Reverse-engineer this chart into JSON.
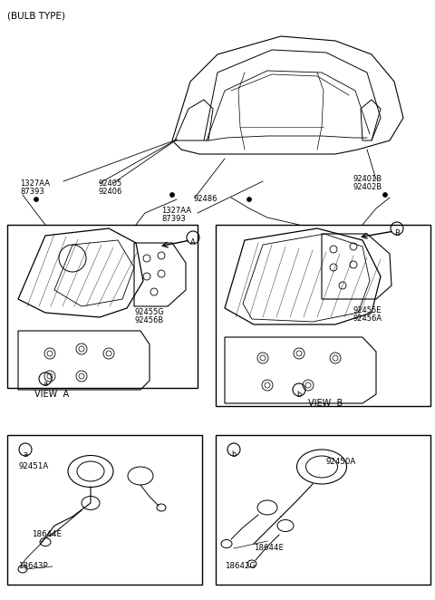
{
  "title": "(BULB TYPE)",
  "bg_color": "#ffffff",
  "line_color": "#000000",
  "parts": {
    "left_box_label": "A",
    "right_box_label": "B",
    "bottom_left_label": "a",
    "bottom_right_label": "b",
    "part_numbers": {
      "top_left_1": "1327AA",
      "top_left_2": "87393",
      "top_left_lamp": "92405\n92406",
      "top_right_1": "92401B",
      "top_right_2": "92402B",
      "center_top_1": "92486",
      "center_top_2": "1327AA",
      "center_top_3": "87393",
      "left_inner_1": "92455G",
      "left_inner_2": "92456B",
      "right_inner_1": "92455E",
      "right_inner_2": "92456A",
      "bottom_left_1": "92451A",
      "bottom_left_2": "18644E",
      "bottom_left_3": "18643P",
      "bottom_right_1": "92450A",
      "bottom_right_2": "18644E",
      "bottom_right_3": "18642G"
    }
  },
  "view_labels": [
    "VIEW  A",
    "VIEW  B"
  ]
}
